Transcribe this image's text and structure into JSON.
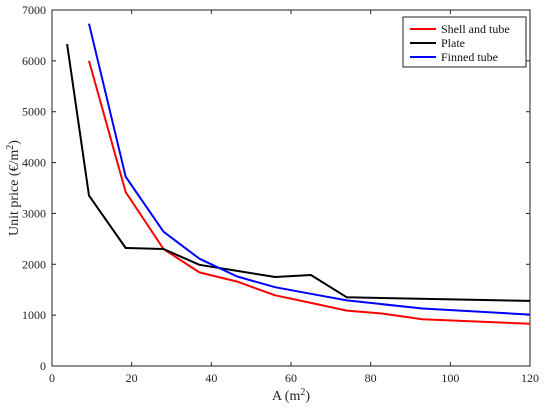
{
  "chart_data": {
    "type": "line",
    "xlabel": "A (m",
    "xlabel_sup": "2",
    "xlabel_tail": ")",
    "ylabel": "Unit price (€/m",
    "ylabel_sup": "2",
    "ylabel_tail": ")",
    "xlim": [
      0,
      120
    ],
    "ylim": [
      0,
      7000
    ],
    "xticks": [
      0,
      20,
      40,
      60,
      80,
      100,
      120
    ],
    "yticks": [
      0,
      1000,
      2000,
      3000,
      4000,
      5000,
      6000,
      7000
    ],
    "grid": false,
    "legend_position": "top-right",
    "series": [
      {
        "name": "Shell and tube",
        "color": "#ff0000",
        "points": [
          [
            9.3,
            6000
          ],
          [
            18.5,
            3420
          ],
          [
            28,
            2300
          ],
          [
            37,
            1840
          ],
          [
            46.5,
            1660
          ],
          [
            56,
            1390
          ],
          [
            65,
            1240
          ],
          [
            74,
            1090
          ],
          [
            83,
            1030
          ],
          [
            93,
            920
          ],
          [
            120,
            830
          ]
        ]
      },
      {
        "name": "Plate",
        "color": "#000000",
        "points": [
          [
            3.8,
            6330
          ],
          [
            9.3,
            3350
          ],
          [
            18.5,
            2320
          ],
          [
            28,
            2300
          ],
          [
            37,
            1990
          ],
          [
            46.5,
            1870
          ],
          [
            56,
            1750
          ],
          [
            65,
            1790
          ],
          [
            74,
            1350
          ],
          [
            120,
            1280
          ]
        ]
      },
      {
        "name": "Finned tube",
        "color": "#0000ff",
        "points": [
          [
            9.3,
            6730
          ],
          [
            18.5,
            3720
          ],
          [
            28,
            2640
          ],
          [
            37,
            2110
          ],
          [
            46.5,
            1760
          ],
          [
            56,
            1550
          ],
          [
            65,
            1420
          ],
          [
            74,
            1290
          ],
          [
            93,
            1130
          ],
          [
            120,
            1010
          ]
        ]
      }
    ]
  }
}
